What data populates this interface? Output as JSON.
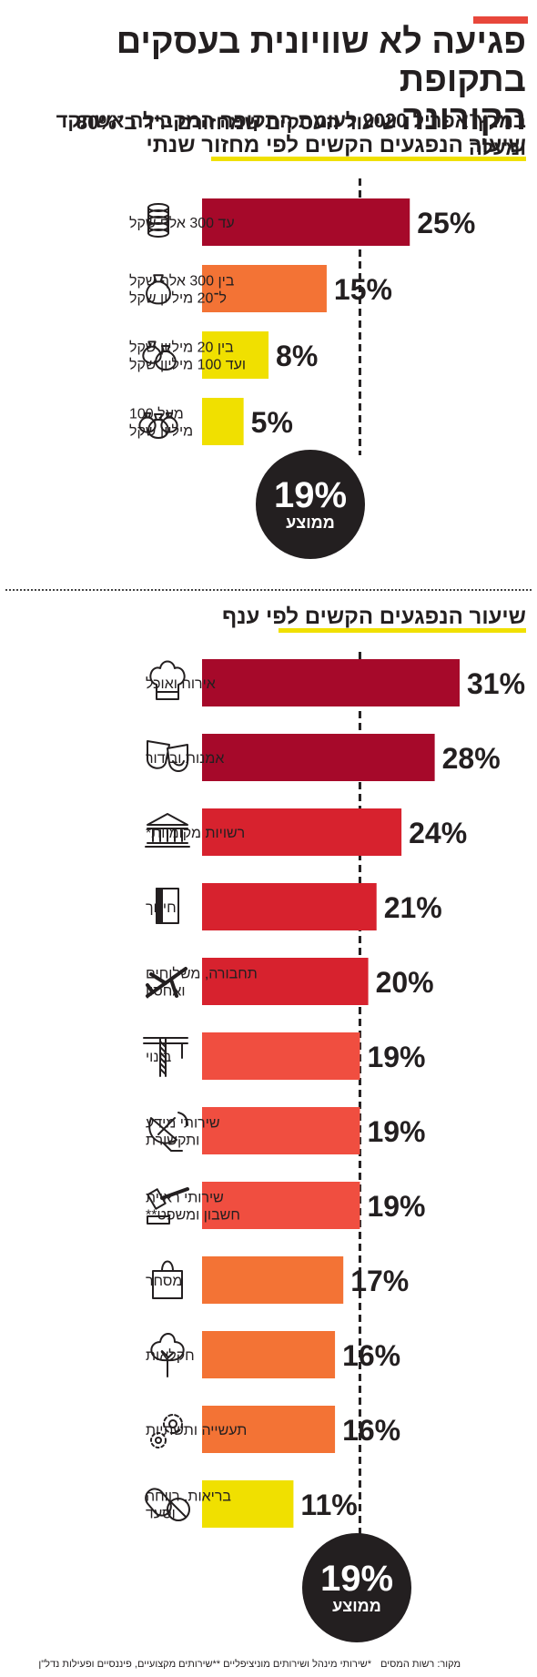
{
  "header": {
    "title_line1_main": "פגיעה לא שוויונית בעסקים בתקופת",
    "title_line2_main": "הקורונה",
    "title_line2_sub": "שיעור העסקים שמחזורם ירד ב־80% ומעלה",
    "title_line3": "במרץ־אפריל 2020 לעומת התקופה המקבילה אשתקד",
    "accent_color": "#e8473b"
  },
  "chart_data": [
    {
      "type": "bar",
      "title": "שיעור הנפגעים הקשים לפי מחזור שנתי",
      "categories": [
        "עד 300 אלף שקל",
        "בין 300 אלף שקל ל־20 מיליון שקל",
        "בין 20 מיליון שקל ועד 100 מיליון שקל",
        "מעל 100 מיליון שקל"
      ],
      "label_lines": [
        [
          "עד 300 אלף שקל"
        ],
        [
          "בין 300 אלף שקל",
          "ל־20 מיליון שקל"
        ],
        [
          "בין 20 מיליון שקל",
          "ועד 100 מיליון שקל"
        ],
        [
          "מעל 100",
          "מיליון שקל"
        ]
      ],
      "values": [
        25,
        15,
        8,
        5
      ],
      "value_labels": [
        "25%",
        "15%",
        "8%",
        "5%"
      ],
      "icons": [
        "coin-stack-icon",
        "money-bag-icon",
        "two-money-bags-icon",
        "three-money-bags-icon"
      ],
      "colors": [
        "#a6092a",
        "#f37335",
        "#f0e000",
        "#f0e000"
      ],
      "average": 19,
      "average_label": "19%",
      "average_text": "ממוצע",
      "xlim": [
        0,
        31
      ]
    },
    {
      "type": "bar",
      "title": "שיעור הנפגעים הקשים לפי ענף",
      "categories": [
        "אירוח ואוכל",
        "אמנות ובידור",
        "רשויות מקומיות*",
        "חינוך",
        "תחבורה, משלוחים ואחסון",
        "בינוי",
        "שירותי מידע ותקשורת",
        "שירותי ראיית חשבון ומשפט**",
        "מסחר",
        "חקלאות",
        "תעשייה ותשתיות",
        "בריאות, רווחה וסעד"
      ],
      "label_lines": [
        [
          "אירוח ואוכל"
        ],
        [
          "אמנות ובידור"
        ],
        [
          "רשויות מקומיות*"
        ],
        [
          "חינוך"
        ],
        [
          "תחבורה, משלוחים",
          "ואחסון"
        ],
        [
          "בינוי"
        ],
        [
          "שירותי מידע",
          "ותקשורת"
        ],
        [
          "שירותי ראיית",
          "חשבון ומשפט**"
        ],
        [
          "מסחר"
        ],
        [
          "חקלאות"
        ],
        [
          "תעשייה ותשתיות"
        ],
        [
          "בריאות, רווחה",
          "וסעד"
        ]
      ],
      "values": [
        31,
        28,
        24,
        21,
        20,
        19,
        19,
        19,
        17,
        16,
        16,
        11
      ],
      "value_labels": [
        "31%",
        "28%",
        "24%",
        "21%",
        "20%",
        "19%",
        "19%",
        "19%",
        "17%",
        "16%",
        "16%",
        "11%"
      ],
      "icons": [
        "chef-hat-icon",
        "theater-masks-icon",
        "government-building-icon",
        "book-icon",
        "airplane-icon",
        "crane-icon",
        "satellite-dish-icon",
        "gavel-icon",
        "shopping-bag-icon",
        "tree-icon",
        "gears-icon",
        "pills-icon"
      ],
      "colors": [
        "#a6092a",
        "#a6092a",
        "#d7222e",
        "#d7222e",
        "#d7222e",
        "#f04e40",
        "#f04e40",
        "#f04e40",
        "#f37335",
        "#f37335",
        "#f37335",
        "#f0e000"
      ],
      "average": 19,
      "average_label": "19%",
      "average_text": "ממוצע",
      "xlim": [
        0,
        31
      ]
    }
  ],
  "footer": {
    "source": "מקור: רשות המסים",
    "note": "*שירותי מינהל ושירותים מוניציפליים **שירותים מקצועיים, פיננסיים ופעילות נדל\"ן"
  }
}
